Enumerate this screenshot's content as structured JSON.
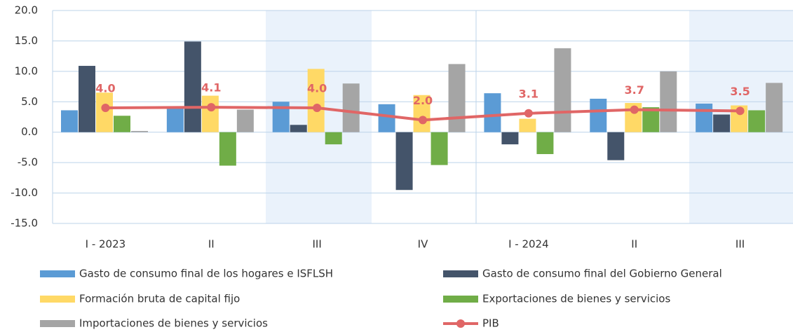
{
  "chart_data": {
    "type": "bar_line",
    "categories": [
      "I - 2023",
      "II",
      "III",
      "IV",
      "I - 2024",
      "II",
      "III"
    ],
    "series": [
      {
        "name": "Gasto de consumo final de los hogares e ISFLSH",
        "color": "#5b9bd5",
        "values": [
          3.6,
          3.9,
          5.0,
          4.6,
          6.4,
          5.5,
          4.7
        ]
      },
      {
        "name": "Gasto de consumo final del Gobierno General",
        "color": "#44546a",
        "values": [
          10.9,
          14.9,
          1.2,
          -9.5,
          -2.0,
          -4.6,
          2.9
        ]
      },
      {
        "name": "Formación bruta de capital fijo",
        "color": "#ffd966",
        "values": [
          6.5,
          6.0,
          10.4,
          6.1,
          2.2,
          4.8,
          4.4
        ]
      },
      {
        "name": "Exportaciones de bienes y servicios",
        "color": "#70ad47",
        "values": [
          2.7,
          -5.5,
          -2.0,
          -5.4,
          -3.6,
          4.1,
          3.6
        ]
      },
      {
        "name": "Importaciones de bienes y servicios",
        "color": "#a5a5a5",
        "values": [
          0.2,
          3.7,
          8.0,
          11.2,
          13.8,
          10.0,
          8.1
        ]
      },
      {
        "name": "PIB",
        "color": "#e06666",
        "type": "line",
        "values": [
          4.0,
          4.1,
          4.0,
          2.0,
          3.1,
          3.7,
          3.5
        ],
        "value_labels": [
          "4.0",
          "4.1",
          "4.0",
          "2.0",
          "3.1",
          "3.7",
          "3.5"
        ]
      }
    ],
    "ylim": [
      -15,
      20
    ],
    "yticks": [
      {
        "value": -15,
        "label": "-15.0"
      },
      {
        "value": -10,
        "label": "-10.0"
      },
      {
        "value": -5,
        "label": "-5.0"
      },
      {
        "value": 0,
        "label": "0.0"
      },
      {
        "value": 5,
        "label": "5.0"
      },
      {
        "value": 10,
        "label": "10.0"
      },
      {
        "value": 15,
        "label": "15.0"
      },
      {
        "value": 20,
        "label": "20.0"
      }
    ],
    "grid": true
  }
}
